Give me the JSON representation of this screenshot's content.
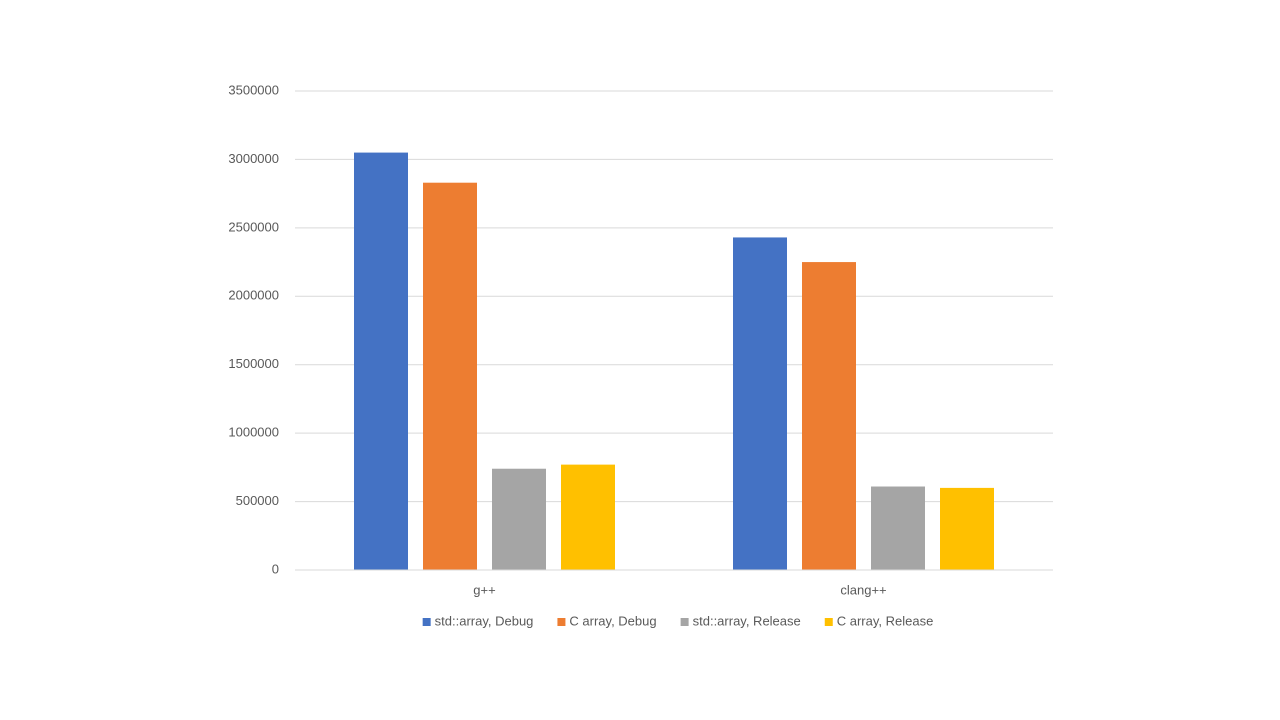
{
  "chart_data": {
    "type": "bar",
    "categories": [
      "g++",
      "clang++"
    ],
    "series": [
      {
        "name": "std::array, Debug",
        "color": "#4472c4",
        "values": [
          3050000,
          2430000
        ]
      },
      {
        "name": "C array, Debug",
        "color": "#ed7d31",
        "values": [
          2830000,
          2250000
        ]
      },
      {
        "name": "std::array, Release",
        "color": "#a5a5a5",
        "values": [
          740000,
          610000
        ]
      },
      {
        "name": "C array, Release",
        "color": "#ffc000",
        "values": [
          770000,
          600000
        ]
      }
    ],
    "ylim": [
      0,
      3500000
    ],
    "yticks": [
      0,
      500000,
      1000000,
      1500000,
      2000000,
      2500000,
      3000000,
      3500000
    ],
    "grid": true,
    "legend": "bottom"
  }
}
